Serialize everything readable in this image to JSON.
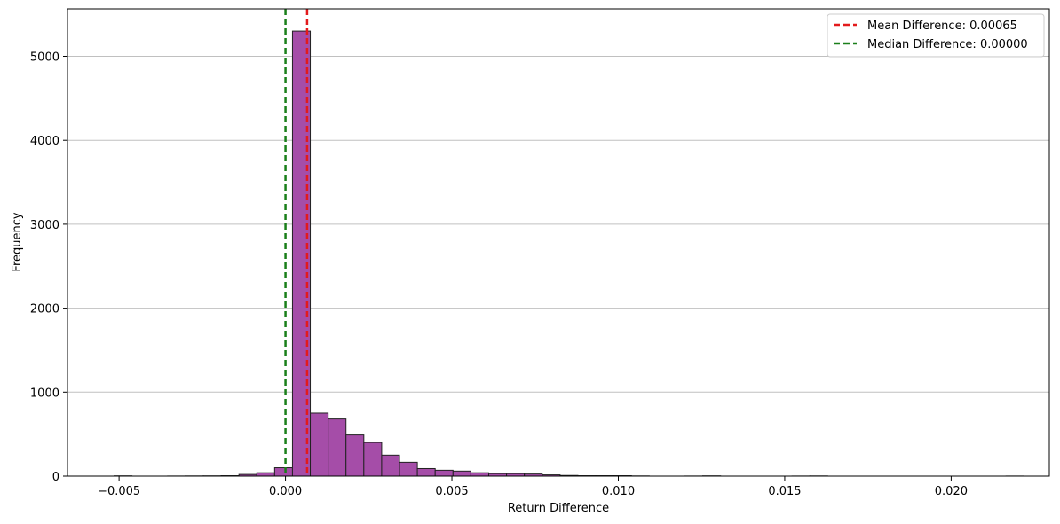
{
  "chart_data": {
    "type": "bar",
    "title": "",
    "xlabel": "Return Difference",
    "ylabel": "Frequency",
    "xlim": [
      -0.00655,
      0.02295
    ],
    "ylim": [
      0,
      5565
    ],
    "grid": "y",
    "legend_position": "top-right",
    "xticks": [
      {
        "value": -0.005,
        "label": "−0.005"
      },
      {
        "value": 0.0,
        "label": "0.000"
      },
      {
        "value": 0.005,
        "label": "0.005"
      },
      {
        "value": 0.01,
        "label": "0.010"
      },
      {
        "value": 0.015,
        "label": "0.015"
      },
      {
        "value": 0.02,
        "label": "0.020"
      }
    ],
    "yticks": [
      {
        "value": 0,
        "label": "0"
      },
      {
        "value": 1000,
        "label": "1000"
      },
      {
        "value": 2000,
        "label": "2000"
      },
      {
        "value": 3000,
        "label": "3000"
      },
      {
        "value": 4000,
        "label": "4000"
      },
      {
        "value": 5000,
        "label": "5000"
      }
    ],
    "bin_width": 0.000536,
    "bin_start": -0.00515,
    "bin_counts": [
      3,
      0,
      0,
      1,
      2,
      3,
      5,
      20,
      40,
      100,
      5300,
      750,
      680,
      490,
      400,
      250,
      165,
      90,
      70,
      60,
      40,
      30,
      30,
      25,
      15,
      8,
      5,
      5,
      5,
      2,
      0,
      0,
      1,
      3,
      0,
      0,
      0,
      0,
      1,
      2,
      0,
      0,
      0,
      0,
      0,
      0,
      0,
      0,
      0,
      0,
      1
    ],
    "bar_color": "#A54DA8",
    "bar_edge_color": "#222222",
    "vlines": [
      {
        "name": "Mean Difference: 0.00065",
        "x": 0.00065,
        "color": "#E31A1C"
      },
      {
        "name": "Median Difference: 0.00000",
        "x": 0.0,
        "color": "#1A7F1A"
      }
    ]
  }
}
